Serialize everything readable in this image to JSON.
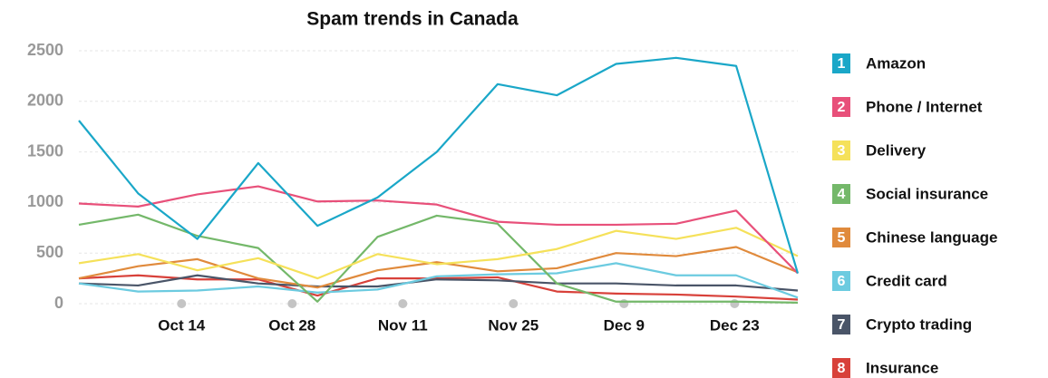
{
  "chart_data": {
    "type": "line",
    "title": "Spam trends in Canada",
    "x": [
      0,
      7.5,
      15,
      22.7,
      30.2,
      37.8,
      45.3,
      53,
      60.5,
      68,
      75.6,
      83.2,
      91
    ],
    "xlim": [
      0,
      91
    ],
    "xticks": [
      {
        "value": 13,
        "label": "Oct 14"
      },
      {
        "value": 27,
        "label": "Oct 28"
      },
      {
        "value": 41,
        "label": "Nov 11"
      },
      {
        "value": 55,
        "label": "Nov 25"
      },
      {
        "value": 69,
        "label": "Dec 9"
      },
      {
        "value": 83,
        "label": "Dec 23"
      }
    ],
    "ylim": [
      0,
      2500
    ],
    "yticks": [
      0,
      500,
      1000,
      1500,
      2000,
      2500
    ],
    "grid": true,
    "legend_numbers": [
      "1",
      "2",
      "3",
      "4",
      "5",
      "6",
      "7",
      "8"
    ],
    "series": [
      {
        "name": "Amazon",
        "color": "#1aa7c8",
        "values": [
          1810,
          1090,
          640,
          1390,
          770,
          1050,
          1500,
          2170,
          2060,
          2370,
          2430,
          2350,
          300
        ]
      },
      {
        "name": "Phone / Internet",
        "color": "#e8507a",
        "values": [
          990,
          960,
          1080,
          1160,
          1010,
          1020,
          980,
          810,
          780,
          780,
          790,
          920,
          300
        ]
      },
      {
        "name": "Delivery",
        "color": "#f5e15a",
        "values": [
          400,
          490,
          330,
          450,
          250,
          490,
          390,
          440,
          540,
          720,
          640,
          750,
          470
        ]
      },
      {
        "name": "Social insurance",
        "color": "#74b86a",
        "values": [
          780,
          880,
          670,
          550,
          20,
          660,
          870,
          790,
          200,
          20,
          20,
          20,
          10
        ]
      },
      {
        "name": "Chinese language",
        "color": "#e08a3c",
        "values": [
          250,
          370,
          440,
          250,
          160,
          330,
          410,
          320,
          350,
          500,
          470,
          560,
          310
        ]
      },
      {
        "name": "Credit card",
        "color": "#6ccbe0",
        "values": [
          200,
          120,
          130,
          170,
          110,
          140,
          270,
          290,
          300,
          400,
          280,
          280,
          60
        ]
      },
      {
        "name": "Crypto trading",
        "color": "#4a5568",
        "values": [
          200,
          180,
          280,
          200,
          170,
          170,
          240,
          230,
          200,
          200,
          180,
          180,
          130
        ]
      },
      {
        "name": "Insurance",
        "color": "#d8413a",
        "values": [
          250,
          280,
          240,
          240,
          80,
          250,
          250,
          260,
          120,
          100,
          90,
          70,
          40
        ]
      }
    ]
  }
}
